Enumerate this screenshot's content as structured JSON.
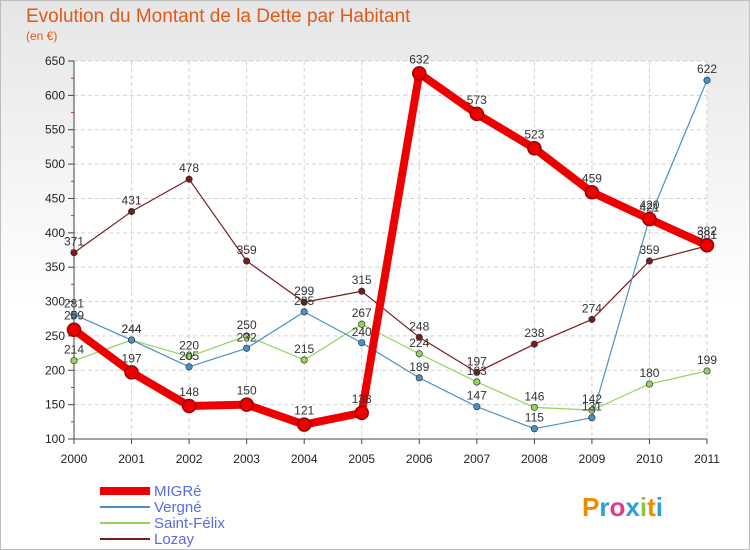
{
  "chart_data": {
    "type": "line",
    "title": "Evolution du Montant de la Dette par Habitant",
    "unit": "(en €)",
    "x": [
      "2000",
      "2001",
      "2002",
      "2003",
      "2004",
      "2005",
      "2006",
      "2007",
      "2008",
      "2009",
      "2010",
      "2011"
    ],
    "ylim": [
      100,
      650
    ],
    "yticks": [
      100,
      150,
      200,
      250,
      300,
      350,
      400,
      450,
      500,
      550,
      600,
      650
    ],
    "grid": true,
    "legend_position": "bottom-left",
    "series": [
      {
        "name": "MIGRé",
        "color": "#ee0000",
        "values": [
          259,
          197,
          148,
          150,
          121,
          138,
          632,
          573,
          523,
          459,
          420,
          382
        ]
      },
      {
        "name": "Vergné",
        "color": "#4a90c8",
        "values": [
          281,
          244,
          205,
          232,
          285,
          240,
          189,
          147,
          115,
          131,
          421,
          622
        ]
      },
      {
        "name": "Saint-Félix",
        "color": "#8fd65a",
        "values": [
          214,
          244,
          220,
          250,
          215,
          267,
          224,
          183,
          146,
          142,
          180,
          199
        ]
      },
      {
        "name": "Lozay",
        "color": "#7a1a1a",
        "values": [
          371,
          431,
          478,
          359,
          299,
          315,
          248,
          197,
          238,
          274,
          359,
          381
        ]
      }
    ]
  },
  "branding": {
    "logo_text": "Proxiti",
    "logo_colors": [
      "#f08a00",
      "#2aa0d8",
      "#e03a8a",
      "#2aa0d8",
      "#8cc63f",
      "#f08a00",
      "#2aa0d8"
    ]
  }
}
